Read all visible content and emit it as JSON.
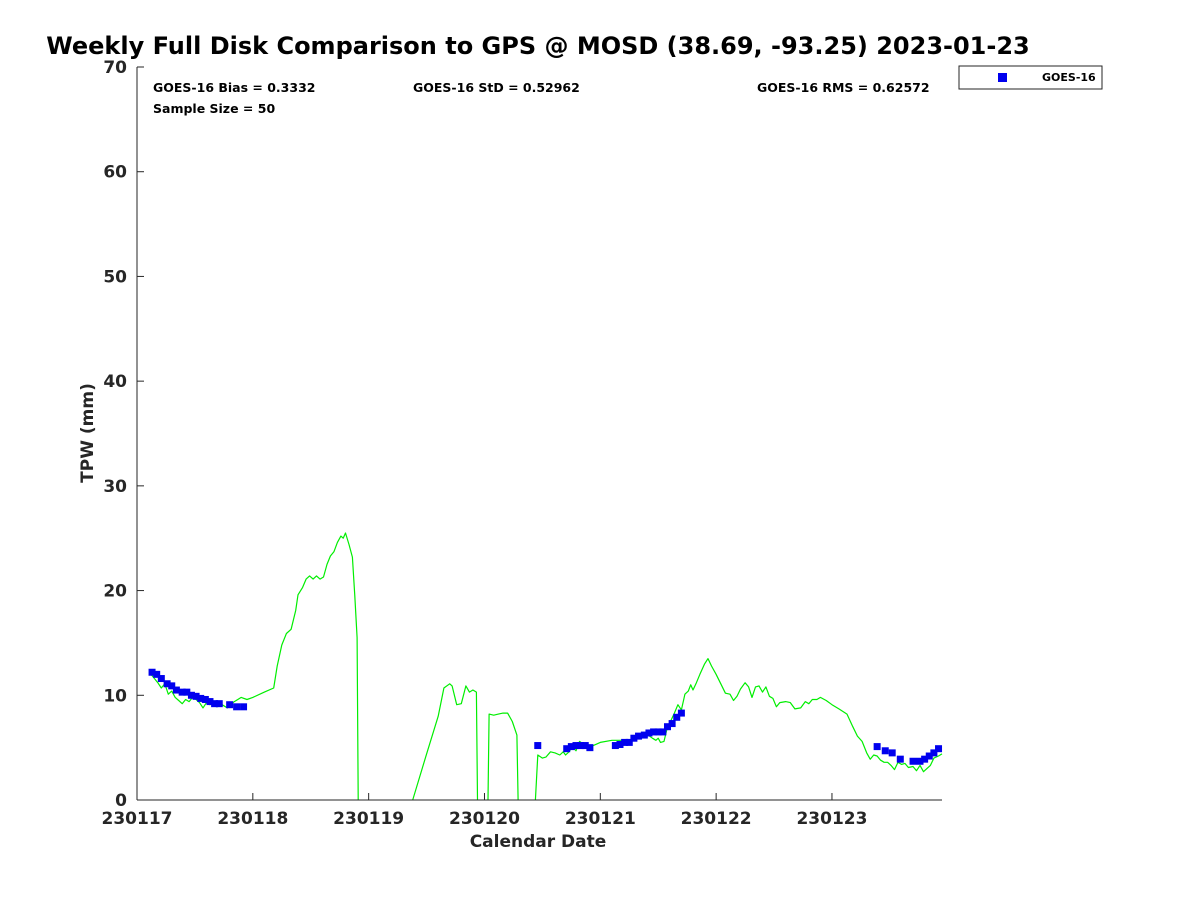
{
  "chart_data": {
    "type": "scatter",
    "title": "Weekly Full Disk Comparison to GPS @ MOSD (38.69, -93.25) 2023-01-23",
    "xlabel": "Calendar Date",
    "ylabel": "TPW (mm)",
    "xlim": [
      230117.0,
      230123.95
    ],
    "ylim": [
      0,
      70
    ],
    "x_ticks": [
      230117,
      230118,
      230119,
      230120,
      230121,
      230122,
      230123
    ],
    "x_tick_labels": [
      "230117",
      "230118",
      "230119",
      "230120",
      "230121",
      "230122",
      "230123"
    ],
    "y_ticks": [
      0,
      10,
      20,
      30,
      40,
      50,
      60,
      70
    ],
    "y_tick_labels": [
      "0",
      "10",
      "20",
      "30",
      "40",
      "50",
      "60",
      "70"
    ],
    "stats": {
      "bias": "GOES-16 Bias = 0.3332",
      "std": "GOES-16 StD = 0.52962",
      "rms": "GOES-16 RMS = 0.62572",
      "sample_size": "Sample Size = 50"
    },
    "legend": {
      "position": "top-right, outside plot area",
      "entries": [
        "GOES-16"
      ]
    },
    "grid": false,
    "series": [
      {
        "name": "GOES-16",
        "kind": "scatter",
        "color": "#0000ee",
        "marker": "square",
        "points": [
          [
            230117.13,
            12.2
          ],
          [
            230117.17,
            12.0
          ],
          [
            230117.21,
            11.6
          ],
          [
            230117.26,
            11.1
          ],
          [
            230117.3,
            10.9
          ],
          [
            230117.34,
            10.5
          ],
          [
            230117.39,
            10.3
          ],
          [
            230117.43,
            10.3
          ],
          [
            230117.47,
            10.0
          ],
          [
            230117.51,
            9.9
          ],
          [
            230117.55,
            9.7
          ],
          [
            230117.59,
            9.6
          ],
          [
            230117.63,
            9.4
          ],
          [
            230117.67,
            9.2
          ],
          [
            230117.71,
            9.2
          ],
          [
            230117.8,
            9.1
          ],
          [
            230117.86,
            8.9
          ],
          [
            230117.92,
            8.9
          ],
          [
            230120.46,
            5.2
          ],
          [
            230120.71,
            4.9
          ],
          [
            230120.75,
            5.1
          ],
          [
            230120.79,
            5.2
          ],
          [
            230120.83,
            5.2
          ],
          [
            230120.87,
            5.2
          ],
          [
            230120.91,
            5.0
          ],
          [
            230121.13,
            5.2
          ],
          [
            230121.17,
            5.3
          ],
          [
            230121.21,
            5.5
          ],
          [
            230121.25,
            5.5
          ],
          [
            230121.29,
            5.9
          ],
          [
            230121.33,
            6.1
          ],
          [
            230121.38,
            6.2
          ],
          [
            230121.42,
            6.4
          ],
          [
            230121.46,
            6.5
          ],
          [
            230121.5,
            6.5
          ],
          [
            230121.54,
            6.5
          ],
          [
            230121.58,
            7.0
          ],
          [
            230121.62,
            7.3
          ],
          [
            230121.66,
            7.9
          ],
          [
            230121.7,
            8.3
          ],
          [
            230123.39,
            5.1
          ],
          [
            230123.46,
            4.7
          ],
          [
            230123.52,
            4.5
          ],
          [
            230123.59,
            3.9
          ],
          [
            230123.7,
            3.7
          ],
          [
            230123.76,
            3.7
          ],
          [
            230123.8,
            3.9
          ],
          [
            230123.84,
            4.2
          ],
          [
            230123.88,
            4.5
          ],
          [
            230123.92,
            4.9
          ]
        ]
      },
      {
        "kind": "line",
        "color": "#00ee00",
        "segments": [
          [
            [
              230117.12,
              12.0
            ],
            [
              230117.15,
              11.6
            ],
            [
              230117.18,
              11.2
            ],
            [
              230117.21,
              10.7
            ],
            [
              230117.24,
              11.1
            ],
            [
              230117.27,
              10.1
            ],
            [
              230117.3,
              10.4
            ],
            [
              230117.33,
              9.8
            ],
            [
              230117.36,
              9.5
            ],
            [
              230117.39,
              9.2
            ],
            [
              230117.42,
              9.6
            ],
            [
              230117.45,
              9.4
            ],
            [
              230117.48,
              9.8
            ],
            [
              230117.51,
              9.6
            ],
            [
              230117.54,
              9.3
            ],
            [
              230117.57,
              8.8
            ],
            [
              230117.6,
              9.3
            ],
            [
              230117.63,
              9.1
            ],
            [
              230117.66,
              9.4
            ],
            [
              230117.69,
              8.9
            ],
            [
              230117.72,
              9.2
            ],
            [
              230117.75,
              9.0
            ],
            [
              230117.78,
              8.8
            ],
            [
              230117.81,
              9.1
            ],
            [
              230117.84,
              9.4
            ],
            [
              230117.87,
              9.6
            ],
            [
              230117.9,
              9.8
            ],
            [
              230117.95,
              9.6
            ],
            [
              230118.0,
              9.8
            ],
            [
              230118.1,
              10.3
            ],
            [
              230118.18,
              10.7
            ],
            [
              230118.21,
              12.8
            ],
            [
              230118.25,
              14.8
            ],
            [
              230118.29,
              15.9
            ],
            [
              230118.33,
              16.3
            ],
            [
              230118.37,
              18.1
            ],
            [
              230118.39,
              19.6
            ],
            [
              230118.43,
              20.3
            ],
            [
              230118.46,
              21.1
            ],
            [
              230118.49,
              21.4
            ],
            [
              230118.52,
              21.1
            ],
            [
              230118.55,
              21.4
            ],
            [
              230118.58,
              21.1
            ],
            [
              230118.61,
              21.3
            ],
            [
              230118.64,
              22.5
            ],
            [
              230118.67,
              23.3
            ],
            [
              230118.7,
              23.7
            ],
            [
              230118.73,
              24.6
            ],
            [
              230118.76,
              25.2
            ],
            [
              230118.78,
              25.0
            ],
            [
              230118.8,
              25.5
            ],
            [
              230118.83,
              24.4
            ],
            [
              230118.86,
              23.2
            ],
            [
              230118.88,
              19.5
            ],
            [
              230118.9,
              15.5
            ],
            [
              230118.91,
              0
            ]
          ],
          [
            [
              230119.38,
              0
            ],
            [
              230119.5,
              4.4
            ],
            [
              230119.6,
              8.0
            ],
            [
              230119.65,
              10.7
            ],
            [
              230119.7,
              11.1
            ],
            [
              230119.72,
              10.9
            ],
            [
              230119.76,
              9.1
            ],
            [
              230119.8,
              9.2
            ],
            [
              230119.84,
              10.9
            ],
            [
              230119.87,
              10.3
            ],
            [
              230119.9,
              10.5
            ],
            [
              230119.93,
              10.3
            ],
            [
              230119.94,
              0
            ]
          ],
          [
            [
              230120.03,
              0
            ],
            [
              230120.04,
              8.2
            ],
            [
              230120.08,
              8.1
            ],
            [
              230120.12,
              8.2
            ],
            [
              230120.16,
              8.3
            ],
            [
              230120.2,
              8.3
            ],
            [
              230120.24,
              7.5
            ],
            [
              230120.28,
              6.2
            ],
            [
              230120.29,
              0
            ]
          ],
          [
            [
              230120.44,
              0
            ],
            [
              230120.46,
              4.3
            ],
            [
              230120.5,
              4.0
            ],
            [
              230120.53,
              4.1
            ],
            [
              230120.57,
              4.6
            ],
            [
              230120.61,
              4.5
            ],
            [
              230120.65,
              4.3
            ],
            [
              230120.68,
              4.6
            ],
            [
              230120.7,
              4.3
            ],
            [
              230120.73,
              4.6
            ],
            [
              230120.76,
              5.1
            ],
            [
              230120.79,
              4.7
            ],
            [
              230120.82,
              5.6
            ],
            [
              230120.86,
              5.3
            ],
            [
              230120.9,
              5.0
            ],
            [
              230121.0,
              5.5
            ],
            [
              230121.1,
              5.7
            ],
            [
              230121.2,
              5.7
            ],
            [
              230121.25,
              5.6
            ],
            [
              230121.3,
              5.8
            ],
            [
              230121.35,
              6.1
            ],
            [
              230121.4,
              6.3
            ],
            [
              230121.45,
              5.9
            ],
            [
              230121.48,
              5.7
            ],
            [
              230121.5,
              5.9
            ],
            [
              230121.52,
              5.5
            ],
            [
              230121.55,
              5.6
            ],
            [
              230121.58,
              7.0
            ],
            [
              230121.61,
              7.6
            ],
            [
              230121.64,
              8.3
            ],
            [
              230121.67,
              9.1
            ],
            [
              230121.7,
              8.6
            ],
            [
              230121.73,
              10.1
            ],
            [
              230121.76,
              10.4
            ],
            [
              230121.78,
              11.0
            ],
            [
              230121.8,
              10.5
            ],
            [
              230121.83,
              11.2
            ],
            [
              230121.86,
              12.0
            ],
            [
              230121.9,
              13.0
            ],
            [
              230121.93,
              13.5
            ],
            [
              230121.96,
              12.8
            ],
            [
              230122.0,
              12.0
            ],
            [
              230122.04,
              11.1
            ],
            [
              230122.08,
              10.2
            ],
            [
              230122.12,
              10.1
            ],
            [
              230122.15,
              9.5
            ],
            [
              230122.18,
              9.9
            ],
            [
              230122.21,
              10.6
            ],
            [
              230122.25,
              11.2
            ],
            [
              230122.28,
              10.8
            ],
            [
              230122.31,
              9.8
            ],
            [
              230122.34,
              10.8
            ],
            [
              230122.37,
              10.9
            ],
            [
              230122.4,
              10.3
            ],
            [
              230122.43,
              10.8
            ],
            [
              230122.46,
              9.9
            ],
            [
              230122.49,
              9.7
            ],
            [
              230122.52,
              8.9
            ],
            [
              230122.55,
              9.3
            ],
            [
              230122.6,
              9.4
            ],
            [
              230122.64,
              9.3
            ],
            [
              230122.68,
              8.7
            ],
            [
              230122.73,
              8.8
            ],
            [
              230122.77,
              9.4
            ],
            [
              230122.8,
              9.2
            ],
            [
              230122.83,
              9.6
            ],
            [
              230122.87,
              9.6
            ],
            [
              230122.9,
              9.8
            ],
            [
              230122.95,
              9.5
            ],
            [
              230123.0,
              9.1
            ],
            [
              230123.06,
              8.7
            ],
            [
              230123.13,
              8.2
            ],
            [
              230123.18,
              7.0
            ],
            [
              230123.22,
              6.1
            ],
            [
              230123.26,
              5.6
            ],
            [
              230123.3,
              4.5
            ],
            [
              230123.33,
              3.9
            ],
            [
              230123.36,
              4.3
            ],
            [
              230123.39,
              4.2
            ],
            [
              230123.42,
              3.8
            ],
            [
              230123.45,
              3.6
            ],
            [
              230123.48,
              3.6
            ],
            [
              230123.51,
              3.3
            ],
            [
              230123.54,
              2.9
            ],
            [
              230123.57,
              3.6
            ],
            [
              230123.6,
              3.4
            ],
            [
              230123.63,
              3.5
            ],
            [
              230123.66,
              3.1
            ],
            [
              230123.7,
              3.2
            ],
            [
              230123.73,
              2.8
            ],
            [
              230123.76,
              3.3
            ],
            [
              230123.79,
              2.7
            ],
            [
              230123.82,
              3.0
            ],
            [
              230123.85,
              3.3
            ],
            [
              230123.88,
              4.0
            ],
            [
              230123.92,
              4.2
            ],
            [
              230123.95,
              4.4
            ]
          ]
        ]
      }
    ]
  }
}
